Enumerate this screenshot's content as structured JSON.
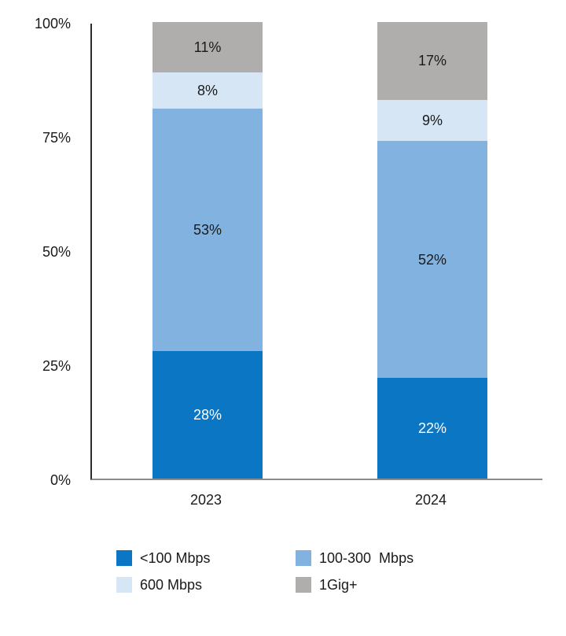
{
  "chart_data": {
    "type": "bar",
    "stacked": true,
    "title": "",
    "xlabel": "",
    "ylabel": "",
    "categories": [
      "2023",
      "2024"
    ],
    "series": [
      {
        "name": "<100 Mbps",
        "color": "#0b76c4",
        "label_color": "#ffffff",
        "values": [
          28,
          22
        ]
      },
      {
        "name": "100-300  Mbps",
        "color": "#82b3e0",
        "label_color": "#1a1a1a",
        "values": [
          53,
          52
        ]
      },
      {
        "name": "600 Mbps",
        "color": "#d6e6f4",
        "label_color": "#1a1a1a",
        "values": [
          8,
          9
        ]
      },
      {
        "name": "1Gig+",
        "color": "#b0aead",
        "label_color": "#1a1a1a",
        "values": [
          11,
          17
        ]
      }
    ],
    "ylim": [
      0,
      100
    ],
    "yticks": [
      "0%",
      "25%",
      "50%",
      "75%",
      "100%"
    ],
    "grid": false,
    "legend_position": "bottom",
    "value_label_suffix": "%"
  }
}
